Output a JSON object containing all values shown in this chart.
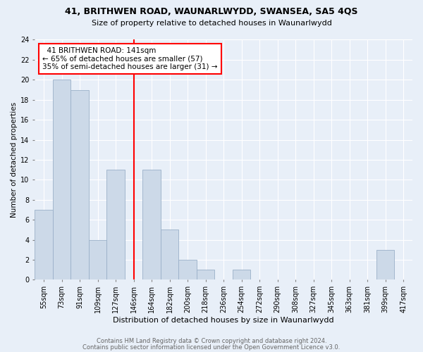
{
  "title1": "41, BRITHWEN ROAD, WAUNARLWYDD, SWANSEA, SA5 4QS",
  "title2": "Size of property relative to detached houses in Waunarlwydd",
  "xlabel": "Distribution of detached houses by size in Waunarlwydd",
  "ylabel": "Number of detached properties",
  "footnote1": "Contains HM Land Registry data © Crown copyright and database right 2024.",
  "footnote2": "Contains public sector information licensed under the Open Government Licence v3.0.",
  "bin_labels": [
    "55sqm",
    "73sqm",
    "91sqm",
    "109sqm",
    "127sqm",
    "146sqm",
    "164sqm",
    "182sqm",
    "200sqm",
    "218sqm",
    "236sqm",
    "254sqm",
    "272sqm",
    "290sqm",
    "308sqm",
    "327sqm",
    "345sqm",
    "363sqm",
    "381sqm",
    "399sqm",
    "417sqm"
  ],
  "bar_values": [
    7,
    20,
    19,
    4,
    11,
    0,
    11,
    5,
    2,
    1,
    0,
    1,
    0,
    0,
    0,
    0,
    0,
    0,
    0,
    3,
    0
  ],
  "bar_color": "#ccd9e8",
  "bar_edge_color": "#9ab0c8",
  "property_label": "41 BRITHWEN ROAD: 141sqm",
  "pct_smaller": 65,
  "count_smaller": 57,
  "pct_larger_semi": 35,
  "count_larger_semi": 31,
  "red_line_bin_index": 5,
  "annotation_box_color": "white",
  "annotation_border_color": "red",
  "ylim": [
    0,
    24
  ],
  "yticks": [
    0,
    2,
    4,
    6,
    8,
    10,
    12,
    14,
    16,
    18,
    20,
    22,
    24
  ],
  "bg_color": "#e8eff8",
  "grid_color": "white",
  "title1_fontsize": 9,
  "title2_fontsize": 8,
  "xlabel_fontsize": 8,
  "ylabel_fontsize": 7.5,
  "tick_fontsize": 7,
  "footnote_fontsize": 6,
  "annotation_fontsize": 7.5
}
